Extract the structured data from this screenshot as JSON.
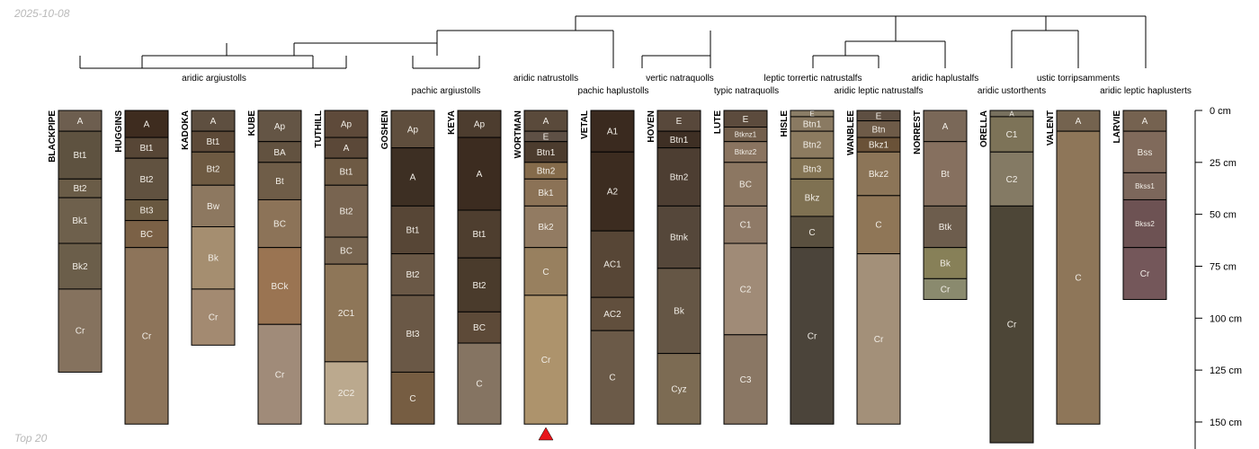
{
  "date_label": "2025-10-08",
  "footer_label": "Top 20",
  "depth_axis": {
    "unit": "cm",
    "max": 160,
    "ticks": [
      {
        "value": 0,
        "label": "0 cm"
      },
      {
        "value": 25,
        "label": "25 cm"
      },
      {
        "value": 50,
        "label": "50 cm"
      },
      {
        "value": 75,
        "label": "75 cm"
      },
      {
        "value": 100,
        "label": "100 cm"
      },
      {
        "value": 125,
        "label": "125 cm"
      },
      {
        "value": 150,
        "label": "150 cm"
      }
    ]
  },
  "marker": {
    "profile": "WORTMAN",
    "color": "#e8141b"
  },
  "profiles": [
    {
      "name": "BLACKPIPE",
      "horizons": [
        {
          "name": "A",
          "top": 0,
          "bottom": 10,
          "color": "#6d5e4f"
        },
        {
          "name": "Bt1",
          "top": 10,
          "bottom": 33,
          "color": "#5e5240"
        },
        {
          "name": "Bt2",
          "top": 33,
          "bottom": 42,
          "color": "#6a5c47"
        },
        {
          "name": "Bk1",
          "top": 42,
          "bottom": 64,
          "color": "#6e604c"
        },
        {
          "name": "Bk2",
          "top": 64,
          "bottom": 86,
          "color": "#6b5e4a"
        },
        {
          "name": "Cr",
          "top": 86,
          "bottom": 126,
          "color": "#85725e"
        }
      ]
    },
    {
      "name": "HUGGINS",
      "horizons": [
        {
          "name": "A",
          "top": 0,
          "bottom": 13,
          "color": "#3e2c1f"
        },
        {
          "name": "Bt1",
          "top": 13,
          "bottom": 23,
          "color": "#574636"
        },
        {
          "name": "Bt2",
          "top": 23,
          "bottom": 43,
          "color": "#615240"
        },
        {
          "name": "Bt3",
          "top": 43,
          "bottom": 53,
          "color": "#695840"
        },
        {
          "name": "BC",
          "top": 53,
          "bottom": 66,
          "color": "#7b6146"
        },
        {
          "name": "Cr",
          "top": 66,
          "bottom": 151,
          "color": "#8d745a"
        }
      ]
    },
    {
      "name": "KADOKA",
      "horizons": [
        {
          "name": "A",
          "top": 0,
          "bottom": 10,
          "color": "#5e4f40"
        },
        {
          "name": "Bt1",
          "top": 10,
          "bottom": 20,
          "color": "#5d4a38"
        },
        {
          "name": "Bt2",
          "top": 20,
          "bottom": 36,
          "color": "#6e5a42"
        },
        {
          "name": "Bw",
          "top": 36,
          "bottom": 56,
          "color": "#8d7860"
        },
        {
          "name": "Bk",
          "top": 56,
          "bottom": 86,
          "color": "#a58e70"
        },
        {
          "name": "Cr",
          "top": 86,
          "bottom": 113,
          "color": "#a38a71"
        }
      ]
    },
    {
      "name": "KUBE",
      "horizons": [
        {
          "name": "Ap",
          "top": 0,
          "bottom": 15,
          "color": "#645545"
        },
        {
          "name": "BA",
          "top": 15,
          "bottom": 25,
          "color": "#625240"
        },
        {
          "name": "Bt",
          "top": 25,
          "bottom": 43,
          "color": "#6f5d48"
        },
        {
          "name": "BC",
          "top": 43,
          "bottom": 66,
          "color": "#8c7358"
        },
        {
          "name": "BCk",
          "top": 66,
          "bottom": 103,
          "color": "#9a7452"
        },
        {
          "name": "Cr",
          "top": 103,
          "bottom": 151,
          "color": "#a08b79"
        }
      ]
    },
    {
      "name": "TUTHILL",
      "horizons": [
        {
          "name": "Ap",
          "top": 0,
          "bottom": 13,
          "color": "#5e4a3a"
        },
        {
          "name": "A",
          "top": 13,
          "bottom": 23,
          "color": "#5b4838"
        },
        {
          "name": "Bt1",
          "top": 23,
          "bottom": 36,
          "color": "#6e5a44"
        },
        {
          "name": "Bt2",
          "top": 36,
          "bottom": 61,
          "color": "#786450"
        },
        {
          "name": "BC",
          "top": 61,
          "bottom": 74,
          "color": "#77644f"
        },
        {
          "name": "2C1",
          "top": 74,
          "bottom": 121,
          "color": "#8e7658"
        },
        {
          "name": "2C2",
          "top": 121,
          "bottom": 151,
          "color": "#bba98e"
        }
      ]
    },
    {
      "name": "GOSHEN",
      "horizons": [
        {
          "name": "Ap",
          "top": 0,
          "bottom": 18,
          "color": "#5f4e3d"
        },
        {
          "name": "A",
          "top": 18,
          "bottom": 46,
          "color": "#3d2f23"
        },
        {
          "name": "Bt1",
          "top": 46,
          "bottom": 69,
          "color": "#574636"
        },
        {
          "name": "Bt2",
          "top": 69,
          "bottom": 89,
          "color": "#6a5846"
        },
        {
          "name": "Bt3",
          "top": 89,
          "bottom": 126,
          "color": "#6a5846"
        },
        {
          "name": "C",
          "top": 126,
          "bottom": 151,
          "color": "#765d42"
        }
      ]
    },
    {
      "name": "KEYA",
      "horizons": [
        {
          "name": "Ap",
          "top": 0,
          "bottom": 13,
          "color": "#4d3d2f"
        },
        {
          "name": "A",
          "top": 13,
          "bottom": 48,
          "color": "#3c2c20"
        },
        {
          "name": "Bt1",
          "top": 48,
          "bottom": 71,
          "color": "#4e3e2f"
        },
        {
          "name": "Bt2",
          "top": 71,
          "bottom": 97,
          "color": "#4a3b2c"
        },
        {
          "name": "BC",
          "top": 97,
          "bottom": 112,
          "color": "#5d4a38"
        },
        {
          "name": "C",
          "top": 112,
          "bottom": 151,
          "color": "#857462"
        }
      ]
    },
    {
      "name": "WORTMAN",
      "horizons": [
        {
          "name": "A",
          "top": 0,
          "bottom": 10,
          "color": "#5a4a3b"
        },
        {
          "name": "E",
          "top": 10,
          "bottom": 15,
          "color": "#5e5045"
        },
        {
          "name": "Btn1",
          "top": 15,
          "bottom": 25,
          "color": "#4c3c2e"
        },
        {
          "name": "Btn2",
          "top": 25,
          "bottom": 33,
          "color": "#856b4b"
        },
        {
          "name": "Bk1",
          "top": 33,
          "bottom": 46,
          "color": "#8b7256"
        },
        {
          "name": "Bk2",
          "top": 46,
          "bottom": 66,
          "color": "#927b62"
        },
        {
          "name": "C",
          "top": 66,
          "bottom": 89,
          "color": "#98805f"
        },
        {
          "name": "Cr",
          "top": 89,
          "bottom": 151,
          "color": "#ad936c"
        }
      ]
    },
    {
      "name": "VETAL",
      "horizons": [
        {
          "name": "A1",
          "top": 0,
          "bottom": 20,
          "color": "#3a2a1f"
        },
        {
          "name": "A2",
          "top": 20,
          "bottom": 58,
          "color": "#3c2c20"
        },
        {
          "name": "AC1",
          "top": 58,
          "bottom": 90,
          "color": "#574636"
        },
        {
          "name": "AC2",
          "top": 90,
          "bottom": 106,
          "color": "#614f3d"
        },
        {
          "name": "C",
          "top": 106,
          "bottom": 151,
          "color": "#6b5a48"
        }
      ]
    },
    {
      "name": "HOVEN",
      "horizons": [
        {
          "name": "E",
          "top": 0,
          "bottom": 10,
          "color": "#58483b"
        },
        {
          "name": "Btn1",
          "top": 10,
          "bottom": 18,
          "color": "#3e2f24"
        },
        {
          "name": "Btn2",
          "top": 18,
          "bottom": 46,
          "color": "#4d3e32"
        },
        {
          "name": "Btnk",
          "top": 46,
          "bottom": 76,
          "color": "#55473a"
        },
        {
          "name": "Bk",
          "top": 76,
          "bottom": 117,
          "color": "#655645"
        },
        {
          "name": "Cyz",
          "top": 117,
          "bottom": 151,
          "color": "#7c6b53"
        }
      ]
    },
    {
      "name": "LUTE",
      "horizons": [
        {
          "name": "E",
          "top": 0,
          "bottom": 8,
          "color": "#5c4b3d"
        },
        {
          "name": "Btknz1",
          "top": 8,
          "bottom": 15,
          "color": "#735f4c"
        },
        {
          "name": "Btknz2",
          "top": 15,
          "bottom": 25,
          "color": "#8a7460"
        },
        {
          "name": "BC",
          "top": 25,
          "bottom": 46,
          "color": "#8c7762"
        },
        {
          "name": "C1",
          "top": 46,
          "bottom": 64,
          "color": "#8f7a67"
        },
        {
          "name": "C2",
          "top": 64,
          "bottom": 108,
          "color": "#a08b77"
        },
        {
          "name": "C3",
          "top": 108,
          "bottom": 151,
          "color": "#8a7764"
        }
      ]
    },
    {
      "name": "HISLE",
      "horizons": [
        {
          "name": "E",
          "top": 0,
          "bottom": 3,
          "color": "#8a7d66"
        },
        {
          "name": "Btn1",
          "top": 3,
          "bottom": 10,
          "color": "#8a7a62"
        },
        {
          "name": "Btn2",
          "top": 10,
          "bottom": 23,
          "color": "#8c7b60"
        },
        {
          "name": "Btn3",
          "top": 23,
          "bottom": 33,
          "color": "#847454"
        },
        {
          "name": "Bkz",
          "top": 33,
          "bottom": 51,
          "color": "#7f7152"
        },
        {
          "name": "C",
          "top": 51,
          "bottom": 66,
          "color": "#5a503f"
        },
        {
          "name": "Cr",
          "top": 66,
          "bottom": 151,
          "color": "#4b443a"
        }
      ]
    },
    {
      "name": "WANBLEE",
      "horizons": [
        {
          "name": "E",
          "top": 0,
          "bottom": 5,
          "color": "#5e4f42"
        },
        {
          "name": "Btn",
          "top": 5,
          "bottom": 13,
          "color": "#6e5b48"
        },
        {
          "name": "Bkz1",
          "top": 13,
          "bottom": 20,
          "color": "#6a5238"
        },
        {
          "name": "Bkz2",
          "top": 20,
          "bottom": 41,
          "color": "#8c7558"
        },
        {
          "name": "C",
          "top": 41,
          "bottom": 69,
          "color": "#8f7657"
        },
        {
          "name": "Cr",
          "top": 69,
          "bottom": 151,
          "color": "#a39079"
        }
      ]
    },
    {
      "name": "NORREST",
      "horizons": [
        {
          "name": "A",
          "top": 0,
          "bottom": 15,
          "color": "#7a6858"
        },
        {
          "name": "Bt",
          "top": 15,
          "bottom": 46,
          "color": "#86705f"
        },
        {
          "name": "Btk",
          "top": 46,
          "bottom": 66,
          "color": "#6d5d4d"
        },
        {
          "name": "Bk",
          "top": 66,
          "bottom": 81,
          "color": "#878058"
        },
        {
          "name": "Cr",
          "top": 81,
          "bottom": 91,
          "color": "#8a8a6e"
        }
      ]
    },
    {
      "name": "ORELLA",
      "horizons": [
        {
          "name": "A",
          "top": 0,
          "bottom": 3,
          "color": "#77705e"
        },
        {
          "name": "C1",
          "top": 3,
          "bottom": 20,
          "color": "#7d7358"
        },
        {
          "name": "C2",
          "top": 20,
          "bottom": 46,
          "color": "#847a64"
        },
        {
          "name": "Cr",
          "top": 46,
          "bottom": 160,
          "color": "#4d4637"
        }
      ]
    },
    {
      "name": "VALENT",
      "horizons": [
        {
          "name": "A",
          "top": 0,
          "bottom": 10,
          "color": "#74634f"
        },
        {
          "name": "C",
          "top": 10,
          "bottom": 151,
          "color": "#8e7659"
        }
      ]
    },
    {
      "name": "LARVIE",
      "horizons": [
        {
          "name": "A",
          "top": 0,
          "bottom": 10,
          "color": "#756250"
        },
        {
          "name": "Bss",
          "top": 10,
          "bottom": 30,
          "color": "#806a5b"
        },
        {
          "name": "Bkss1",
          "top": 30,
          "bottom": 43,
          "color": "#7c675b"
        },
        {
          "name": "Bkss2",
          "top": 43,
          "bottom": 66,
          "color": "#6d5253"
        },
        {
          "name": "Cr",
          "top": 66,
          "bottom": 91,
          "color": "#74575a"
        }
      ]
    }
  ],
  "taxa": [
    {
      "label": "aridic argiustolls"
    },
    {
      "label": "pachic argiustolls"
    },
    {
      "label": "aridic natrustolls"
    },
    {
      "label": "pachic haplustolls"
    },
    {
      "label": "vertic natraquolls"
    },
    {
      "label": "typic natraquolls"
    },
    {
      "label": "leptic torrertic natrustalfs"
    },
    {
      "label": "aridic leptic natrustalfs"
    },
    {
      "label": "aridic haplustalfs"
    },
    {
      "label": "aridic ustorthents"
    },
    {
      "label": "ustic torripsamments"
    },
    {
      "label": "aridic leptic haplusterts"
    }
  ]
}
